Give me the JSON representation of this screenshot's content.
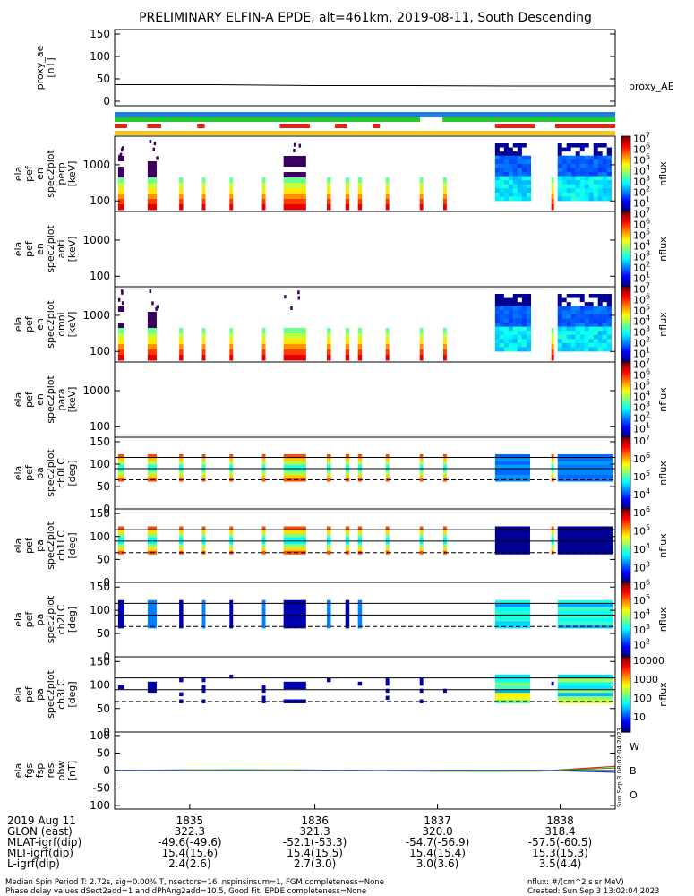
{
  "title": "PRELIMINARY ELFIN-A EPDE, alt=461km, 2019-08-11, South Descending",
  "colors": {
    "red": "#e8201c",
    "green": "#22cc22",
    "blue": "#1e7be8",
    "yellow": "#f5c518",
    "black": "#000000"
  },
  "bars": {
    "blue": [
      [
        0,
        1.0
      ]
    ],
    "green": [
      [
        0,
        0.61
      ],
      [
        0.655,
        1.0
      ]
    ],
    "red": [
      [
        0,
        0.025
      ],
      [
        0.065,
        0.093
      ],
      [
        0.165,
        0.18
      ],
      [
        0.33,
        0.39
      ],
      [
        0.44,
        0.465
      ],
      [
        0.515,
        0.53
      ],
      [
        0.76,
        0.84
      ],
      [
        0.88,
        1.0
      ]
    ],
    "yellow": [
      [
        0,
        1.0
      ]
    ]
  },
  "panels": [
    {
      "id": "proxy_ae",
      "ylabel_lines": [
        "proxy_ae",
        "[nT]"
      ],
      "yticks": [
        "150",
        "100",
        "50",
        "0"
      ],
      "ylim": [
        -10,
        160
      ],
      "right_label": "proxy_AE",
      "type": "line"
    },
    {
      "id": "en_perp",
      "ylabel_lines": [
        "ela",
        "pef",
        "en",
        "spec2plot",
        "perp",
        "[keV]"
      ],
      "yticks": [
        "1000",
        "100"
      ],
      "type": "spectrogram",
      "cbar": "energy"
    },
    {
      "id": "en_anti",
      "ylabel_lines": [
        "ela",
        "pef",
        "en",
        "spec2plot",
        "anti",
        "[keV]"
      ],
      "yticks": [
        "1000",
        "100"
      ],
      "type": "spectrogram_empty",
      "cbar": "energy"
    },
    {
      "id": "en_omni",
      "ylabel_lines": [
        "ela",
        "pef",
        "en",
        "spec2plot",
        "omni",
        "[keV]"
      ],
      "yticks": [
        "1000",
        "100"
      ],
      "type": "spectrogram",
      "cbar": "energy"
    },
    {
      "id": "en_para",
      "ylabel_lines": [
        "ela",
        "pef",
        "en",
        "spec2plot",
        "para",
        "[keV]"
      ],
      "yticks": [
        "1000",
        "100"
      ],
      "type": "spectrogram_empty",
      "cbar": "energy"
    },
    {
      "id": "pa_ch0",
      "ylabel_lines": [
        "ela",
        "pef",
        "pa",
        "spec2plot",
        "ch0LC",
        "[deg]"
      ],
      "yticks": [
        "150",
        "100",
        "50",
        "0"
      ],
      "type": "pitch",
      "cbar": "ch0"
    },
    {
      "id": "pa_ch1",
      "ylabel_lines": [
        "ela",
        "pef",
        "pa",
        "spec2plot",
        "ch1LC",
        "[deg]"
      ],
      "yticks": [
        "150",
        "100",
        "50",
        "0"
      ],
      "type": "pitch",
      "cbar": "ch1"
    },
    {
      "id": "pa_ch2",
      "ylabel_lines": [
        "ela",
        "pef",
        "pa",
        "spec2plot",
        "ch2LC",
        "[deg]"
      ],
      "yticks": [
        "150",
        "100",
        "50",
        "0"
      ],
      "type": "pitch",
      "cbar": "ch2"
    },
    {
      "id": "pa_ch3",
      "ylabel_lines": [
        "ela",
        "pef",
        "pa",
        "spec2plot",
        "ch3LC",
        "[deg]"
      ],
      "yticks": [
        "150",
        "100",
        "50",
        "0"
      ],
      "type": "pitch",
      "cbar": "ch3"
    },
    {
      "id": "fgs",
      "ylabel_lines": [
        "ela",
        "fgs",
        "fsp",
        "res",
        "obw",
        "[nT]"
      ],
      "yticks": [
        "100",
        "50",
        "0",
        "-50",
        "-100"
      ],
      "ylim": [
        -110,
        110
      ],
      "type": "lines"
    }
  ],
  "colorbars": {
    "energy": {
      "ticks": [
        "10^7",
        "10^6",
        "10^5",
        "10^4",
        "10^3",
        "10^2",
        "10^1"
      ],
      "label": "nflux"
    },
    "ch0": {
      "ticks": [
        "10^7",
        "10^6",
        "10^5",
        "10^4"
      ],
      "label": "nflux"
    },
    "ch1": {
      "ticks": [
        "10^6",
        "10^5",
        "10^4",
        "10^3"
      ],
      "label": "nflux"
    },
    "ch2": {
      "ticks": [
        "10^6",
        "10^5",
        "10^4",
        "10^3",
        "10^2"
      ],
      "label": "nflux"
    },
    "ch3": {
      "ticks": [
        "10000",
        "1000",
        "100",
        "10"
      ],
      "label": "nflux"
    }
  },
  "fgs_legend": [
    {
      "label": "W",
      "color": "#d62020"
    },
    {
      "label": "B",
      "color": "#22aa22"
    },
    {
      "label": "O",
      "color": "#1e40d8"
    }
  ],
  "vertical_stamp": "Sun Sep  3 08:02:04 2023",
  "xaxis": {
    "rows": [
      {
        "label": "2019 Aug 11",
        "values": [
          "1835",
          "1836",
          "1837",
          "1838"
        ]
      },
      {
        "label": "GLON (east)",
        "values": [
          "322.3",
          "321.3",
          "320.0",
          "318.4"
        ]
      },
      {
        "label": "MLAT-igrf(dip)",
        "values": [
          "-49.6(-49.6)",
          "-52.1(-53.3)",
          "-54.7(-56.9)",
          "-57.5(-60.5)"
        ]
      },
      {
        "label": "MLT-igrf(dip)",
        "values": [
          "15.4(15.6)",
          "15.4(15.5)",
          "15.4(15.4)",
          "15.3(15.3)"
        ]
      },
      {
        "label": "L-igrf(dip)",
        "values": [
          "2.4(2.6)",
          "2.7(3.0)",
          "3.0(3.6)",
          "3.5(4.4)"
        ]
      }
    ]
  },
  "footer": {
    "line1": "Median Spin Period T: 2.72s, sig=0.00% T, nsectors=16, nspinsinsum=1, FGM completeness=None",
    "line2": "Phase delay values dSect2add=1 and dPhAng2add=10.5, Good Fit, EPDE completeness=None",
    "units": "nflux: #/(cm^2 s sr MeV)",
    "created": "Created: Sun Sep  3 13:02:04 2023"
  },
  "chart_data": {
    "type": "heatmap",
    "title": "PRELIMINARY ELFIN-A EPDE, alt=461km, 2019-08-11, South Descending",
    "x": [
      "1835",
      "1836",
      "1837",
      "1838"
    ],
    "proxy_ae": {
      "values": [
        37,
        37,
        35,
        35,
        34,
        34
      ],
      "ylim": [
        -10,
        160
      ]
    },
    "spectrogram_columns": [
      {
        "t": 0.013,
        "w": 0.012,
        "dark": true
      },
      {
        "t": 0.075,
        "w": 0.018,
        "dark": true
      },
      {
        "t": 0.133,
        "w": 0.008
      },
      {
        "t": 0.178,
        "w": 0.007
      },
      {
        "t": 0.233,
        "w": 0.007
      },
      {
        "t": 0.298,
        "w": 0.007
      },
      {
        "t": 0.36,
        "w": 0.045,
        "dark": true
      },
      {
        "t": 0.428,
        "w": 0.008
      },
      {
        "t": 0.465,
        "w": 0.008
      },
      {
        "t": 0.49,
        "w": 0.008
      },
      {
        "t": 0.545,
        "w": 0.007
      },
      {
        "t": 0.613,
        "w": 0.007
      },
      {
        "t": 0.66,
        "w": 0.007
      },
      {
        "t": 0.795,
        "w": 0.07,
        "block": true
      },
      {
        "t": 0.875,
        "w": 0.005
      },
      {
        "t": 0.94,
        "w": 0.11,
        "block": true
      }
    ],
    "pitch_lines": {
      "upper": 115,
      "middle": 90,
      "dashed": 65
    }
  }
}
